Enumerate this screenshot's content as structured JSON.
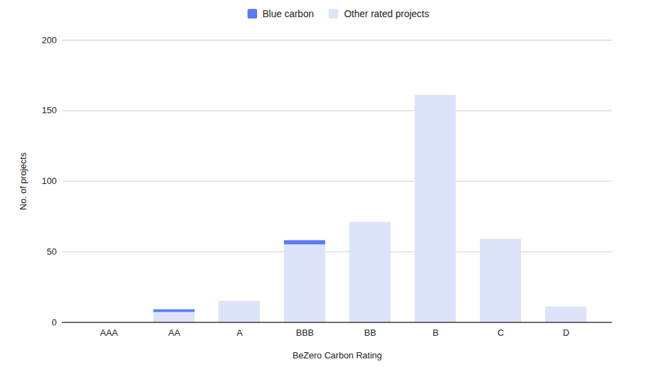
{
  "chart_data": {
    "type": "bar",
    "stacked": true,
    "x_label": "BeZero Carbon Rating",
    "y_label": "No. of projects",
    "categories": [
      "AAA",
      "AA",
      "A",
      "BBB",
      "BB",
      "B",
      "C",
      "D"
    ],
    "series": [
      {
        "name": "Blue carbon",
        "color": "#5b7cfa",
        "values": [
          0,
          2,
          0,
          3,
          0,
          0,
          0,
          0
        ]
      },
      {
        "name": "Other rated projects",
        "color": "#dce3fb",
        "values": [
          0,
          7,
          15,
          55,
          71,
          161,
          59,
          11
        ]
      }
    ],
    "ylim": [
      0,
      200
    ],
    "yticks": [
      0,
      50,
      100,
      150,
      200
    ],
    "grid": true,
    "legend": "top"
  }
}
